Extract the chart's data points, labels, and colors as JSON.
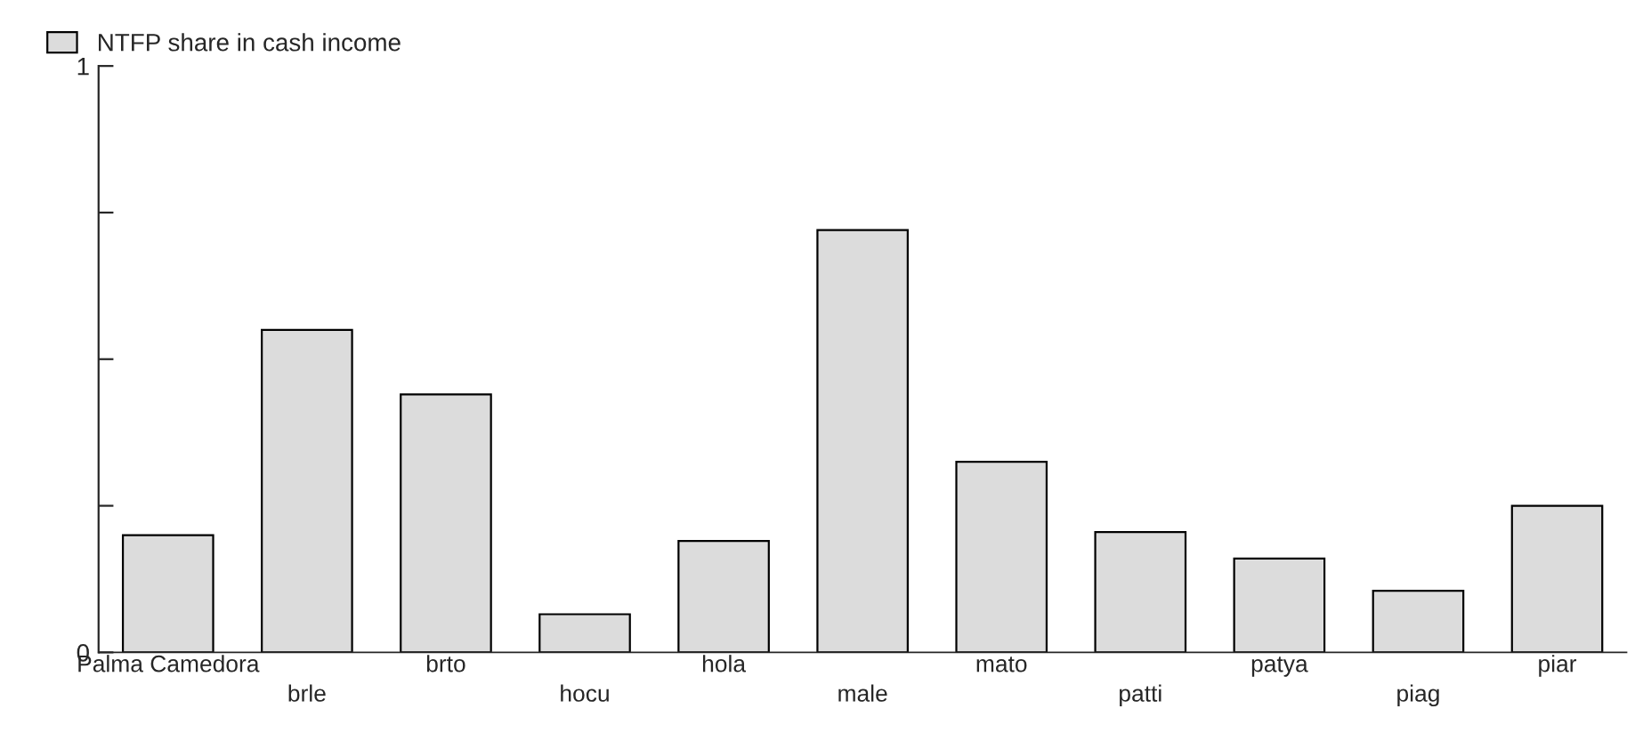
{
  "chart_data": {
    "type": "bar",
    "categories": [
      "Palma Camedora",
      "brle",
      "brto",
      "hocu",
      "hola",
      "male",
      "mato",
      "patti",
      "patya",
      "piag",
      "piar"
    ],
    "series": [
      {
        "name": "NTFP share in cash income",
        "color": "#dcdcdc",
        "values": [
          0.2,
          0.55,
          0.44,
          0.065,
          0.19,
          0.72,
          0.325,
          0.205,
          0.16,
          0.105,
          0.25
        ]
      }
    ],
    "ylim": [
      0,
      1
    ],
    "yticks": [
      0,
      {
        "value": 0.25,
        "label": null
      },
      {
        "value": 0.5,
        "label": null
      },
      {
        "value": 0.75,
        "label": null
      },
      1
    ],
    "grid": false,
    "legend": "top left"
  }
}
